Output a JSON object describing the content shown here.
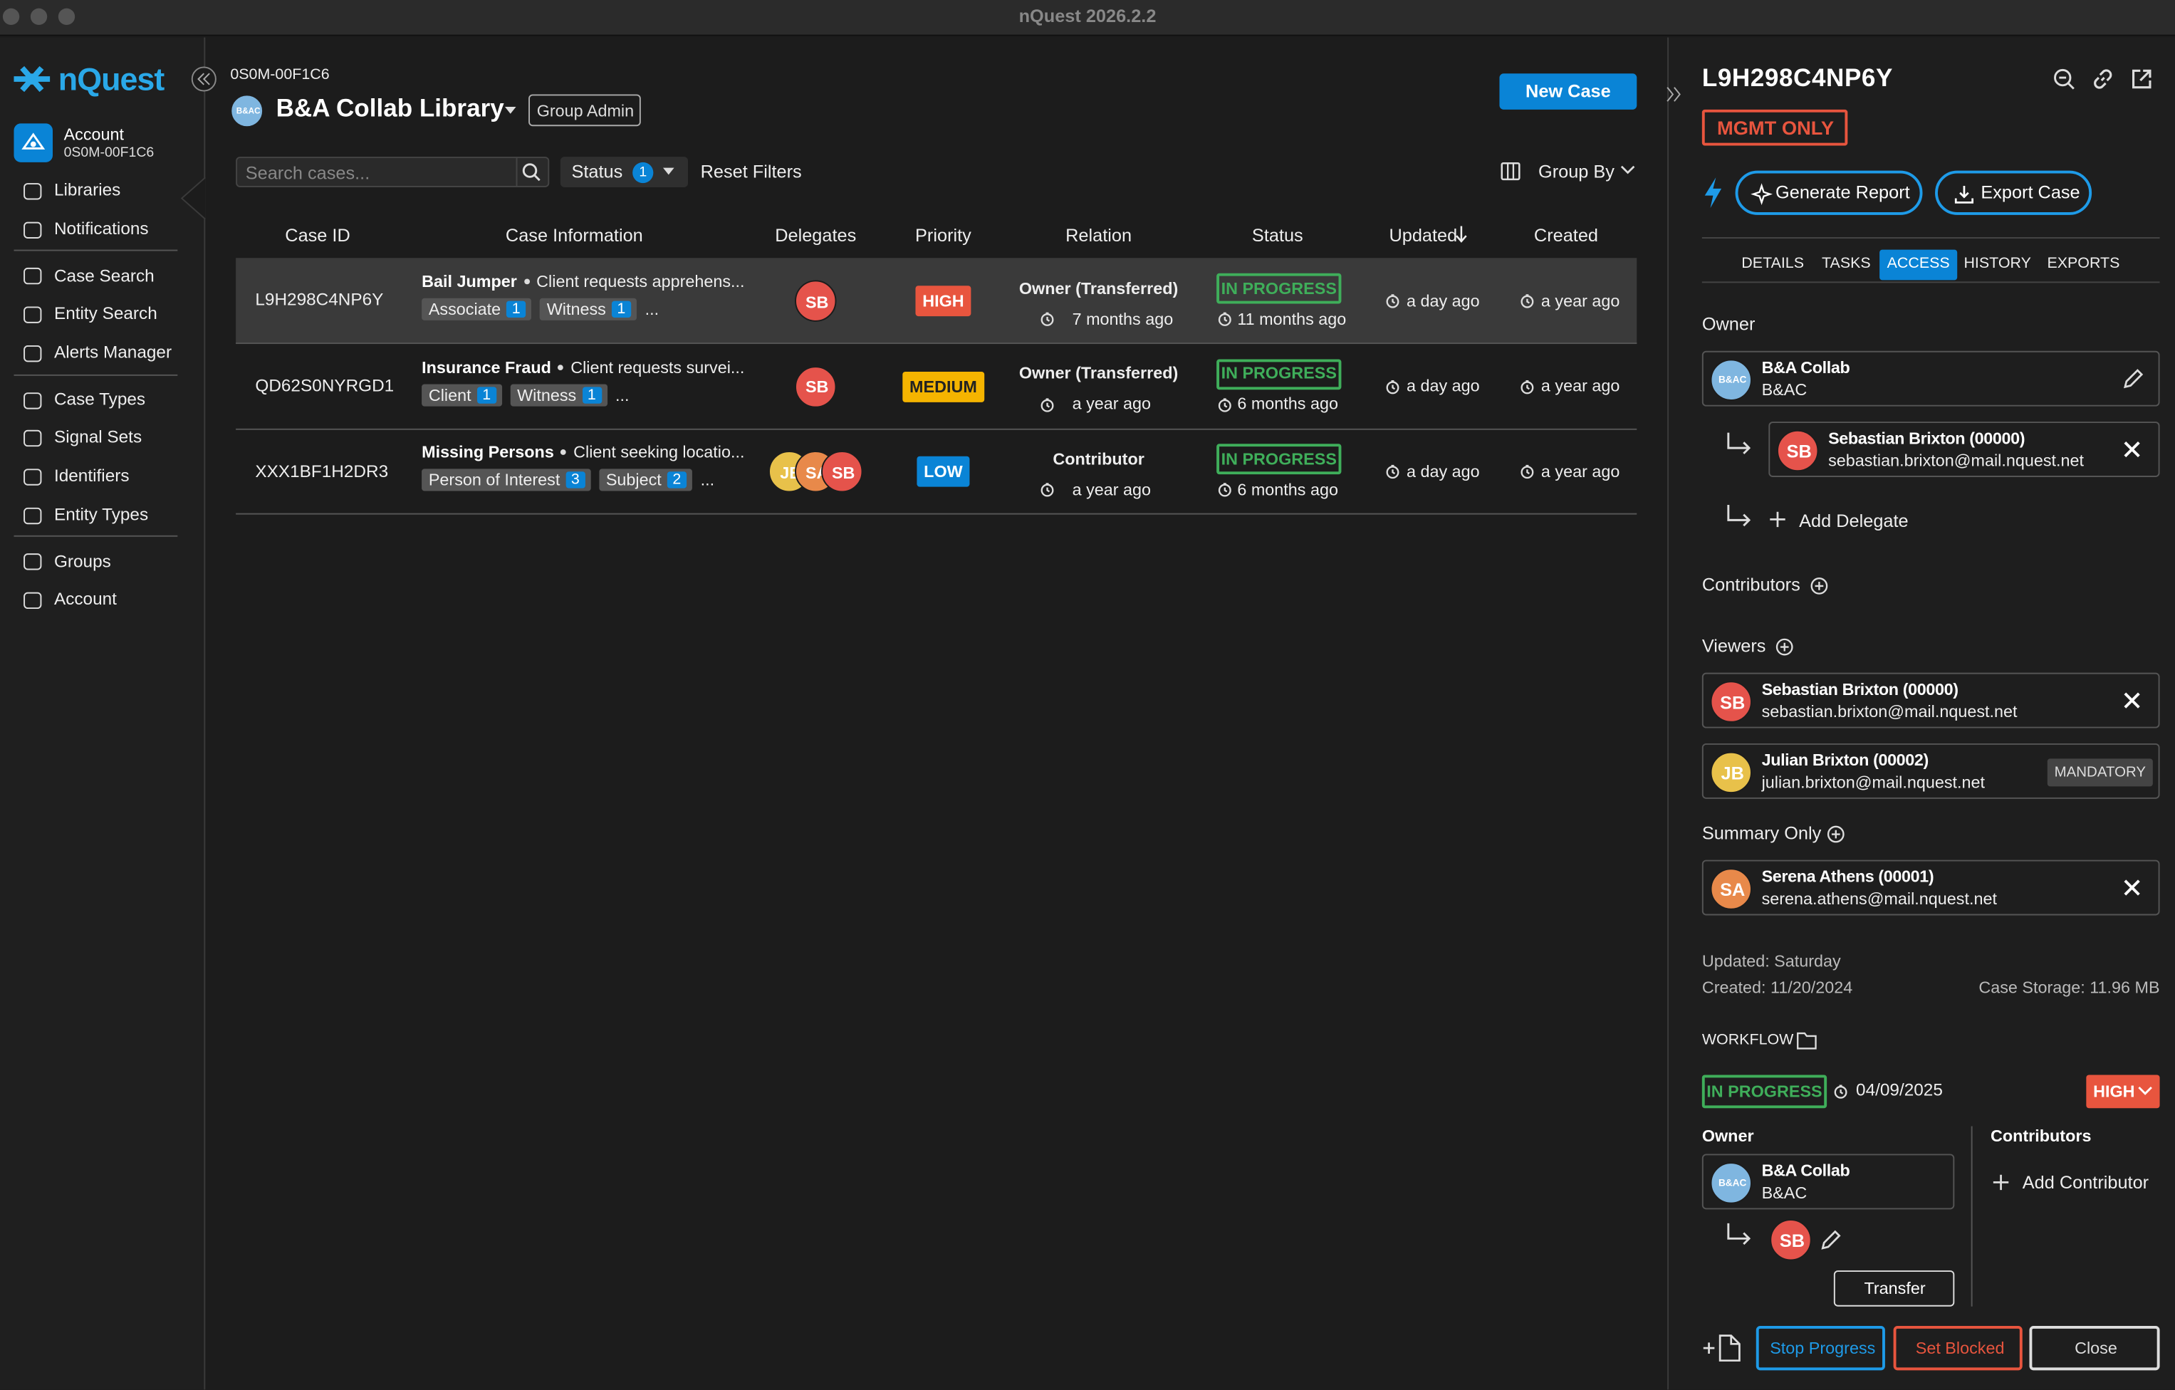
{
  "window": {
    "title": "nQuest 2026.2.2"
  },
  "sidebar": {
    "logo": "nQuest",
    "account": {
      "label": "Account",
      "id": "0S0M-00F1C6"
    },
    "groups": [
      [
        "Libraries",
        "Notifications"
      ],
      [
        "Case Search",
        "Entity Search",
        "Alerts Manager"
      ],
      [
        "Case Types",
        "Signal Sets",
        "Identifiers",
        "Entity Types"
      ],
      [
        "Groups",
        "Account"
      ]
    ]
  },
  "header": {
    "library_id": "0S0M-00F1C6",
    "avatar": "B&AC",
    "library": "B&A Collab Library",
    "role": "Group Admin",
    "new_case": "New Case"
  },
  "filters": {
    "search_placeholder": "Search cases...",
    "status": "Status",
    "status_count": 1,
    "reset": "Reset Filters",
    "group_by": "Group By"
  },
  "table": {
    "columns": [
      "Case ID",
      "Case Information",
      "Delegates",
      "Priority",
      "Relation",
      "Status",
      "Updated",
      "Created"
    ],
    "rows": [
      {
        "id": "L9H298C4NP6Y",
        "type": "Bail Jumper",
        "summary": "Client requests apprehens...",
        "tags": [
          {
            "name": "Associate",
            "count": 1
          },
          {
            "name": "Witness",
            "count": 1
          }
        ],
        "more": "...",
        "delegates": [
          {
            "initials": "SB",
            "color": "#e5534b"
          }
        ],
        "priority": "HIGH",
        "priority_color": "#e8553e",
        "relation": "Owner (Transferred)",
        "relation_time": "7 months ago",
        "status": "IN PROGRESS",
        "status_time": "11 months ago",
        "updated": "a day ago",
        "created": "a year ago"
      },
      {
        "id": "QD62S0NYRGD1",
        "type": "Insurance Fraud",
        "summary": "Client requests survei...",
        "tags": [
          {
            "name": "Client",
            "count": 1
          },
          {
            "name": "Witness",
            "count": 1
          }
        ],
        "more": "...",
        "delegates": [
          {
            "initials": "SB",
            "color": "#e5534b"
          }
        ],
        "priority": "MEDIUM",
        "priority_color": "#f5b400",
        "relation": "Owner (Transferred)",
        "relation_time": "a year ago",
        "status": "IN PROGRESS",
        "status_time": "6 months ago",
        "updated": "a day ago",
        "created": "a year ago"
      },
      {
        "id": "XXX1BF1H2DR3",
        "type": "Missing Persons",
        "summary": "Client seeking locatio...",
        "tags": [
          {
            "name": "Person of Interest",
            "count": 3
          },
          {
            "name": "Subject",
            "count": 2
          }
        ],
        "more": "...",
        "delegates": [
          {
            "initials": "JB",
            "color": "#e8c14a"
          },
          {
            "initials": "SA",
            "color": "#e8894a"
          },
          {
            "initials": "SB",
            "color": "#e5534b"
          }
        ],
        "priority": "LOW",
        "priority_color": "#0a84d6",
        "relation": "Contributor",
        "relation_time": "a year ago",
        "status": "IN PROGRESS",
        "status_time": "6 months ago",
        "updated": "a day ago",
        "created": "a year ago"
      }
    ]
  },
  "panel": {
    "case_id": "L9H298C4NP6Y",
    "badge": "MGMT ONLY",
    "generate_report": "Generate Report",
    "export_case": "Export Case",
    "tabs": [
      "DETAILS",
      "TASKS",
      "ACCESS",
      "HISTORY",
      "EXPORTS"
    ],
    "active_tab": 2,
    "owner_label": "Owner",
    "owner": {
      "initials": "B&AC",
      "name": "B&A Collab",
      "sub": "B&AC",
      "color": "#7fb6e0"
    },
    "delegate": {
      "initials": "SB",
      "name": "Sebastian Brixton (00000)",
      "email": "sebastian.brixton@mail.nquest.net",
      "color": "#e5534b"
    },
    "add_delegate": "Add Delegate",
    "contributors_label": "Contributors",
    "viewers_label": "Viewers",
    "viewers": [
      {
        "initials": "SB",
        "name": "Sebastian Brixton (00000)",
        "email": "sebastian.brixton@mail.nquest.net",
        "color": "#e5534b"
      },
      {
        "initials": "JB",
        "name": "Julian Brixton (00002)",
        "email": "julian.brixton@mail.nquest.net",
        "color": "#e8c14a",
        "tag": "MANDATORY"
      }
    ],
    "summary_label": "Summary Only",
    "summary_only": [
      {
        "initials": "SA",
        "name": "Serena Athens (00001)",
        "email": "serena.athens@mail.nquest.net",
        "color": "#e8894a"
      }
    ],
    "updated": "Updated: Saturday",
    "created": "Created: 11/20/2024",
    "storage": "Case Storage: 11.96 MB",
    "workflow": {
      "label": "WORKFLOW",
      "status": "IN PROGRESS",
      "date": "04/09/2025",
      "priority": "HIGH",
      "owner_label": "Owner",
      "owner": {
        "initials": "B&AC",
        "name": "B&A Collab",
        "sub": "B&AC",
        "color": "#7fb6e0"
      },
      "delegate": {
        "initials": "SB",
        "color": "#e5534b"
      },
      "transfer": "Transfer",
      "contributors_label": "Contributors",
      "add_contributor": "Add Contributor"
    },
    "buttons": [
      "Stop Progress",
      "Set Blocked",
      "Close"
    ]
  }
}
